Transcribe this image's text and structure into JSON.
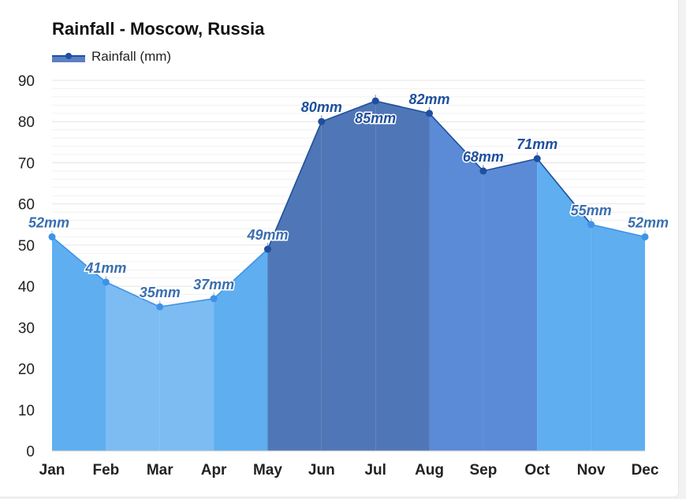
{
  "chart_data": {
    "type": "area",
    "title": "Rainfall - Moscow, Russia",
    "legend": [
      {
        "name": "Rainfall (mm)",
        "color": "#1f4f9e"
      }
    ],
    "legend_position": "top-left",
    "categories": [
      "Jan",
      "Feb",
      "Mar",
      "Apr",
      "May",
      "Jun",
      "Jul",
      "Aug",
      "Sep",
      "Oct",
      "Nov",
      "Dec"
    ],
    "series": [
      {
        "name": "Rainfall (mm)",
        "values": [
          52,
          41,
          35,
          37,
          49,
          80,
          85,
          82,
          68,
          71,
          55,
          52
        ],
        "labels": [
          "52mm",
          "41mm",
          "35mm",
          "37mm",
          "49mm",
          "80mm",
          "85mm",
          "82mm",
          "68mm",
          "71mm",
          "55mm",
          "52mm"
        ]
      }
    ],
    "ylim": [
      0,
      90
    ],
    "yticks": [
      "0",
      "10",
      "20",
      "30",
      "40",
      "50",
      "60",
      "70",
      "80",
      "90"
    ],
    "grid": true,
    "colors": {
      "low": "#7cbcf2",
      "medium": "#5eaef0",
      "high": "#5b8ad6",
      "very_high": "#4f76b6",
      "line_light": "#3f93e6",
      "line_dark": "#1f4f9e"
    }
  }
}
